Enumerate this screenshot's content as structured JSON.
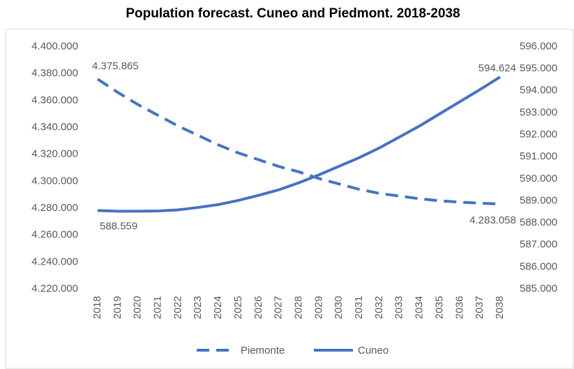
{
  "chart_data": {
    "type": "line",
    "title": "Population forecast. Cuneo and Piedmont. 2018-2038",
    "categories": [
      "2018",
      "2019",
      "2020",
      "2021",
      "2022",
      "2023",
      "2024",
      "2025",
      "2026",
      "2027",
      "2028",
      "2029",
      "2030",
      "2031",
      "2032",
      "2033",
      "2034",
      "2035",
      "2036",
      "2037",
      "2038"
    ],
    "series": [
      {
        "name": "Piemonte",
        "color": "#4472c4",
        "dash": "dashed",
        "axis": "y",
        "values": [
          4375865,
          4366000,
          4357000,
          4349000,
          4341000,
          4334000,
          4327000,
          4321000,
          4316000,
          4311000,
          4307000,
          4302000,
          4298000,
          4294000,
          4291000,
          4289000,
          4287000,
          4285500,
          4284500,
          4283700,
          4283058
        ],
        "value_labels": [
          "4.375.865",
          null,
          null,
          null,
          null,
          null,
          null,
          null,
          null,
          null,
          null,
          null,
          null,
          null,
          null,
          null,
          null,
          null,
          null,
          null,
          "4.283.058"
        ]
      },
      {
        "name": "Cuneo",
        "color": "#4472c4",
        "dash": "solid",
        "axis": "y2",
        "values": [
          588559,
          588530,
          588530,
          588540,
          588590,
          588700,
          588830,
          589020,
          589250,
          589500,
          589820,
          590180,
          590570,
          590960,
          591400,
          591900,
          592400,
          592950,
          593500,
          594050,
          594624
        ],
        "value_labels": [
          "588.559",
          null,
          null,
          null,
          null,
          null,
          null,
          null,
          null,
          null,
          null,
          null,
          null,
          null,
          null,
          null,
          null,
          null,
          null,
          null,
          "594.624"
        ]
      }
    ],
    "ylim": [
      4220000,
      4400000
    ],
    "yticks": [
      {
        "value": 4220000,
        "label": "4.220.000"
      },
      {
        "value": 4240000,
        "label": "4.240.000"
      },
      {
        "value": 4260000,
        "label": "4.260.000"
      },
      {
        "value": 4280000,
        "label": "4.280.000"
      },
      {
        "value": 4300000,
        "label": "4.300.000"
      },
      {
        "value": 4320000,
        "label": "4.320.000"
      },
      {
        "value": 4340000,
        "label": "4.340.000"
      },
      {
        "value": 4360000,
        "label": "4.360.000"
      },
      {
        "value": 4380000,
        "label": "4.380.000"
      },
      {
        "value": 4400000,
        "label": "4.400.000"
      }
    ],
    "y2lim": [
      585000,
      596000
    ],
    "y2ticks": [
      {
        "value": 585000,
        "label": "585.000"
      },
      {
        "value": 586000,
        "label": "586.000"
      },
      {
        "value": 587000,
        "label": "587.000"
      },
      {
        "value": 588000,
        "label": "588.000"
      },
      {
        "value": 589000,
        "label": "589.000"
      },
      {
        "value": 590000,
        "label": "590.000"
      },
      {
        "value": 591000,
        "label": "591.000"
      },
      {
        "value": 592000,
        "label": "592.000"
      },
      {
        "value": 593000,
        "label": "593.000"
      },
      {
        "value": 594000,
        "label": "594.000"
      },
      {
        "value": 595000,
        "label": "595.000"
      },
      {
        "value": 596000,
        "label": "596.000"
      }
    ],
    "grid": false,
    "legend": "bottom"
  }
}
